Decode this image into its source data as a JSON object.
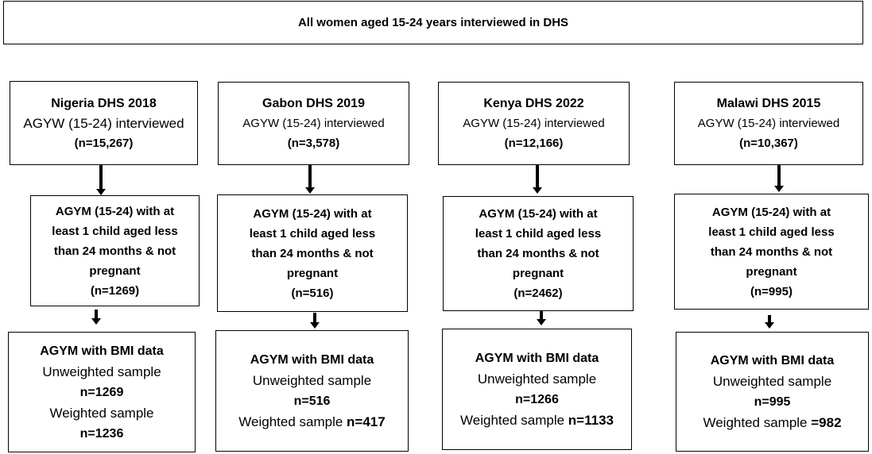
{
  "top_box": "All women aged 15-24 years interviewed in DHS",
  "columns": [
    {
      "survey": "Nigeria DHS 2018",
      "interviewed": "AGYW (15-24) interviewed",
      "n_interviewed": "(n=15,267)",
      "criteria_lines": [
        "AGYM (15-24) with at",
        "least 1 child aged less",
        "than 24 months & not",
        "pregnant"
      ],
      "n_criteria": "(n=1269)",
      "bmi_title": "AGYM with BMI data",
      "unweighted_label": "Unweighted sample",
      "unweighted_n": "n=1269",
      "weighted_label": "Weighted sample",
      "weighted_n": "n=1236"
    },
    {
      "survey": "Gabon DHS 2019",
      "interviewed": "AGYW (15-24) interviewed",
      "n_interviewed": "(n=3,578)",
      "criteria_lines": [
        "AGYM (15-24) with at",
        "least 1 child aged less",
        "than 24 months & not",
        "pregnant"
      ],
      "n_criteria": "(n=516)",
      "bmi_title": "AGYM with BMI data",
      "unweighted_label": "Unweighted sample",
      "unweighted_n": "n=516",
      "weighted_label": "Weighted sample ",
      "weighted_n": "n=417"
    },
    {
      "survey": "Kenya DHS 2022",
      "interviewed": "AGYW (15-24) interviewed",
      "n_interviewed": "(n=12,166)",
      "criteria_lines": [
        "AGYM (15-24) with at",
        "least 1 child aged less",
        "than 24 months & not",
        "pregnant"
      ],
      "n_criteria": "(n=2462)",
      "bmi_title": "AGYM with BMI data",
      "unweighted_label": "Unweighted sample",
      "unweighted_n": "n=1266",
      "weighted_label": "Weighted sample ",
      "weighted_n": "n=1133"
    },
    {
      "survey": "Malawi DHS 2015",
      "interviewed": "AGYW (15-24) interviewed",
      "n_interviewed": "(n=10,367)",
      "criteria_lines": [
        "AGYM (15-24) with at",
        "least 1 child aged less",
        "than 24 months & not",
        "pregnant"
      ],
      "n_criteria": "(n=995)",
      "bmi_title": "AGYM with BMI data",
      "unweighted_label": "Unweighted sample",
      "unweighted_n": "n=995",
      "weighted_label": "Weighted sample ",
      "weighted_n": "=982"
    }
  ]
}
